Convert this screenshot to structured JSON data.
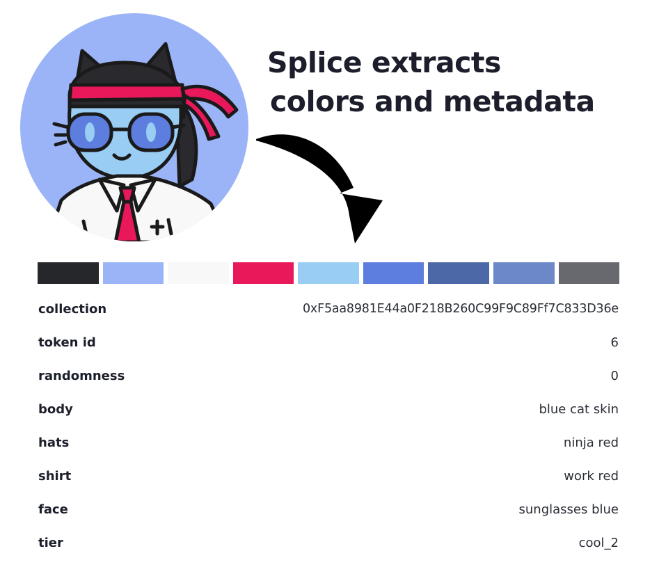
{
  "headline": {
    "line1": "Splice extracts",
    "line2": "colors and metadata"
  },
  "avatar": {
    "icon": "cool-cat-avatar-icon"
  },
  "arrow": {
    "icon": "curved-arrow-down-icon"
  },
  "palette": [
    "#26272b",
    "#9bb4f7",
    "#f8f8f8",
    "#e8185a",
    "#99cdf3",
    "#5d7ede",
    "#4c68a6",
    "#6c88c9",
    "#68696e"
  ],
  "metadata": [
    {
      "key": "collection",
      "value": "0xF5aa8981E44a0F218B260C99F9C89Ff7C833D36e"
    },
    {
      "key": "token id",
      "value": "6"
    },
    {
      "key": "randomness",
      "value": "0"
    },
    {
      "key": "body",
      "value": "blue cat skin"
    },
    {
      "key": "hats",
      "value": "ninja red"
    },
    {
      "key": "shirt",
      "value": "work red"
    },
    {
      "key": "face",
      "value": "sunglasses blue"
    },
    {
      "key": "tier",
      "value": "cool_2"
    }
  ]
}
